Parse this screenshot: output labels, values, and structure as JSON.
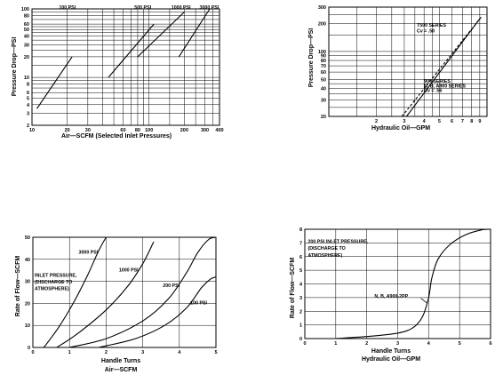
{
  "chart_data": [
    {
      "id": "c1",
      "type": "line",
      "xscale": "log",
      "yscale": "log",
      "xlim": [
        10,
        400
      ],
      "ylim": [
        2,
        100
      ],
      "grid": true,
      "xlabel": "Air—SCFM (Selected Inlet Pressures)",
      "ylabel": "Pressure Drop—PSI",
      "xticks": [
        10,
        20,
        30,
        60,
        80,
        100,
        200,
        300,
        400
      ],
      "yticks": [
        2,
        3,
        4,
        5,
        6,
        8,
        10,
        20,
        30,
        40,
        50,
        60,
        80,
        100
      ],
      "series": [
        {
          "name": "100 PSI",
          "x": [
            11,
            22
          ],
          "y": [
            3.5,
            20
          ]
        },
        {
          "name": "500 PSI",
          "x": [
            45,
            110
          ],
          "y": [
            10,
            60
          ]
        },
        {
          "name": "1000 PSI",
          "x": [
            80,
            200
          ],
          "y": [
            20,
            90
          ]
        },
        {
          "name": "3000 PSI",
          "x": [
            180,
            330
          ],
          "y": [
            20,
            100
          ]
        }
      ],
      "labels": [
        {
          "text": "100 PSI",
          "x": 17,
          "y": 100
        },
        {
          "text": "500 PSI",
          "x": 75,
          "y": 100
        },
        {
          "text": "1000 PSI",
          "x": 155,
          "y": 100
        },
        {
          "text": "3000 PSI",
          "x": 270,
          "y": 100
        }
      ]
    },
    {
      "id": "c2",
      "type": "line",
      "xscale": "log",
      "yscale": "log",
      "xlim": [
        1,
        10
      ],
      "ylim": [
        20,
        300
      ],
      "grid": true,
      "xlabel": "Hydraulic Oil—GPM",
      "ylabel": "Pressure Drop—PSI",
      "xticks": [
        2,
        3,
        4,
        5,
        6,
        7,
        8,
        9
      ],
      "yticks": [
        20,
        30,
        40,
        50,
        60,
        70,
        80,
        90,
        100,
        200,
        300
      ],
      "series": [
        {
          "name": "T500 SERIES Cv = .50",
          "x": [
            2.9,
            9.3
          ],
          "y": [
            20,
            240
          ],
          "style": "dashed"
        },
        {
          "name": "900 SERIES N, B, A900 SERIES Cv = .56",
          "x": [
            3.1,
            9.0
          ],
          "y": [
            20,
            225
          ],
          "style": "solid"
        }
      ],
      "labels": [
        {
          "text": "T500 SERIES",
          "x": 3.6,
          "y": 185
        },
        {
          "text": "Cv = .50",
          "x": 3.6,
          "y": 160
        },
        {
          "text": "900 SERIES",
          "x": 4.0,
          "y": 46
        },
        {
          "text": "N, B, A900 SERIES",
          "x": 4.0,
          "y": 41
        },
        {
          "text": "Cv = .56",
          "x": 4.0,
          "y": 36.5
        }
      ]
    },
    {
      "id": "c3",
      "type": "line",
      "xlim": [
        0,
        5
      ],
      "ylim": [
        0,
        50
      ],
      "grid": true,
      "xlabel": "Handle Turns",
      "xlabel2": "Air—SCFM",
      "ylabel": "Rate of Flow—SCFM",
      "xticks": [
        0,
        1,
        2,
        3,
        4,
        5
      ],
      "yticks": [
        0,
        10,
        20,
        30,
        40,
        50
      ],
      "series": [
        {
          "name": "3000 PSI",
          "x": [
            0.3,
            0.7,
            1.1,
            1.5,
            1.8,
            2.0
          ],
          "y": [
            0,
            9,
            20,
            33,
            44,
            50
          ]
        },
        {
          "name": "1000 PSI",
          "x": [
            0.65,
            1.2,
            2.0,
            2.6,
            3.0,
            3.3
          ],
          "y": [
            0,
            6,
            17,
            28,
            38,
            48
          ]
        },
        {
          "name": "200 PSI",
          "x": [
            1.0,
            2.0,
            3.0,
            3.7,
            4.2,
            4.5,
            4.8,
            5.0
          ],
          "y": [
            0,
            4,
            12,
            22,
            34,
            43,
            49,
            50
          ]
        },
        {
          "name": "100 PSI",
          "x": [
            1.8,
            2.8,
            3.6,
            4.2,
            4.6,
            4.85,
            5.0
          ],
          "y": [
            0,
            4,
            10,
            18,
            27,
            31,
            32
          ]
        }
      ],
      "labels": [
        {
          "text": "3000 PSI",
          "x": 1.25,
          "y": 42.5
        },
        {
          "text": "1000 PSI",
          "x": 2.35,
          "y": 34.5
        },
        {
          "text": "200 PSI",
          "x": 3.55,
          "y": 27.5
        },
        {
          "text": "100 PSI",
          "x": 4.3,
          "y": 19.5
        },
        {
          "text": "INLET PRESSURE,",
          "x": 0.05,
          "y": 32
        },
        {
          "text": "(DISCHARGE TO",
          "x": 0.05,
          "y": 29
        },
        {
          "text": "ATMOSPHERE)",
          "x": 0.05,
          "y": 26
        }
      ]
    },
    {
      "id": "c4",
      "type": "line",
      "xlim": [
        0,
        6
      ],
      "ylim": [
        0,
        8
      ],
      "grid": true,
      "xlabel": "Handle Turns",
      "xlabel2": "Hydraulic Oil—GPM",
      "ylabel": "Rate of Flow—SCFM",
      "xticks": [
        0,
        1,
        2,
        3,
        4,
        5,
        6
      ],
      "yticks": [
        0,
        1,
        2,
        3,
        4,
        5,
        6,
        7,
        8
      ],
      "series": [
        {
          "name": "N, B, A900-2PP",
          "x": [
            1.0,
            2.0,
            3.0,
            3.5,
            3.8,
            4.0,
            4.1,
            4.3,
            4.7,
            5.2,
            5.7,
            6.0
          ],
          "y": [
            0,
            0.15,
            0.4,
            0.8,
            1.6,
            3.0,
            4.4,
            5.8,
            6.9,
            7.6,
            7.95,
            8.0
          ]
        }
      ],
      "labels": [
        {
          "text": "200 PSI INLET PRESSURE,",
          "x": 0.1,
          "y": 7.0
        },
        {
          "text": "(DISCHARGE TO",
          "x": 0.1,
          "y": 6.5
        },
        {
          "text": "ATMOSPHERE)",
          "x": 0.1,
          "y": 6.0
        },
        {
          "text": "N, B, A900-2PP",
          "x": 2.25,
          "y": 3.0
        }
      ]
    }
  ]
}
